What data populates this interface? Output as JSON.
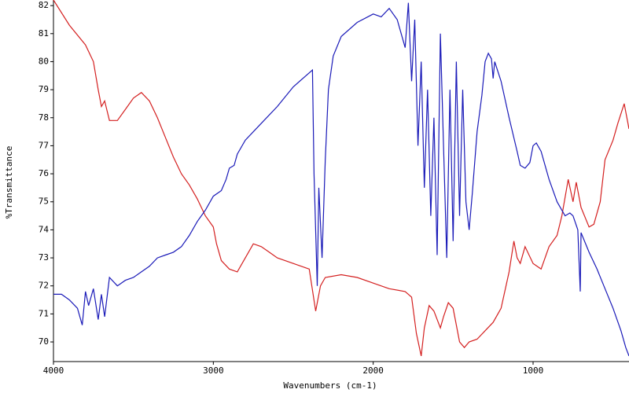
{
  "chart_data": {
    "type": "line",
    "xlabel": "Wavenumbers (cm-1)",
    "ylabel": "%Transmittance",
    "xlim": [
      4000,
      400
    ],
    "ylim": [
      69.3,
      82.2
    ],
    "xticks": [
      4000,
      3000,
      2000,
      1000
    ],
    "yticks": [
      70,
      71,
      72,
      73,
      74,
      75,
      76,
      77,
      78,
      79,
      80,
      81,
      82
    ],
    "series": [
      {
        "color": "#d42020",
        "x": [
          4000,
          3900,
          3800,
          3750,
          3720,
          3700,
          3680,
          3650,
          3600,
          3550,
          3500,
          3450,
          3400,
          3350,
          3300,
          3250,
          3200,
          3150,
          3100,
          3050,
          3000,
          2980,
          2950,
          2900,
          2850,
          2800,
          2750,
          2700,
          2650,
          2600,
          2500,
          2400,
          2360,
          2330,
          2300,
          2200,
          2100,
          2000,
          1900,
          1800,
          1760,
          1730,
          1700,
          1680,
          1650,
          1620,
          1580,
          1560,
          1530,
          1500,
          1460,
          1430,
          1400,
          1350,
          1300,
          1250,
          1200,
          1150,
          1120,
          1100,
          1080,
          1050,
          1000,
          950,
          900,
          850,
          820,
          780,
          750,
          730,
          700,
          650,
          620,
          580,
          550,
          500,
          470,
          430,
          400
        ],
        "values": [
          82.2,
          81.3,
          80.6,
          80.0,
          79.0,
          78.4,
          78.6,
          77.9,
          77.9,
          78.3,
          78.7,
          78.9,
          78.6,
          78.0,
          77.3,
          76.6,
          76.0,
          75.6,
          75.1,
          74.5,
          74.1,
          73.5,
          72.9,
          72.6,
          72.5,
          73.0,
          73.5,
          73.4,
          73.2,
          73.0,
          72.8,
          72.6,
          71.1,
          72.0,
          72.3,
          72.4,
          72.3,
          72.1,
          71.9,
          71.8,
          71.6,
          70.3,
          69.5,
          70.5,
          71.3,
          71.1,
          70.5,
          70.9,
          71.4,
          71.2,
          70.0,
          69.8,
          70.0,
          70.1,
          70.4,
          70.7,
          71.2,
          72.5,
          73.6,
          73.0,
          72.8,
          73.4,
          72.8,
          72.6,
          73.4,
          73.8,
          74.5,
          75.8,
          75.0,
          75.7,
          74.8,
          74.1,
          74.2,
          75.0,
          76.5,
          77.2,
          77.8,
          78.5,
          77.6
        ]
      },
      {
        "color": "#1a1ab8",
        "x": [
          4000,
          3950,
          3900,
          3850,
          3820,
          3800,
          3780,
          3750,
          3720,
          3700,
          3680,
          3650,
          3600,
          3550,
          3500,
          3450,
          3400,
          3350,
          3300,
          3250,
          3200,
          3150,
          3100,
          3050,
          3000,
          2950,
          2920,
          2900,
          2870,
          2850,
          2800,
          2700,
          2600,
          2500,
          2400,
          2380,
          2370,
          2350,
          2340,
          2320,
          2300,
          2280,
          2250,
          2200,
          2100,
          2000,
          1950,
          1900,
          1850,
          1800,
          1780,
          1760,
          1740,
          1720,
          1700,
          1680,
          1660,
          1640,
          1620,
          1600,
          1580,
          1560,
          1540,
          1520,
          1500,
          1480,
          1460,
          1440,
          1420,
          1400,
          1380,
          1350,
          1320,
          1300,
          1280,
          1260,
          1250,
          1240,
          1200,
          1150,
          1100,
          1080,
          1050,
          1020,
          1000,
          980,
          950,
          900,
          850,
          800,
          770,
          750,
          720,
          705,
          700,
          650,
          600,
          550,
          500,
          450,
          420,
          400
        ],
        "values": [
          71.7,
          71.7,
          71.5,
          71.2,
          70.6,
          71.8,
          71.3,
          71.9,
          70.8,
          71.7,
          70.9,
          72.3,
          72.0,
          72.2,
          72.3,
          72.5,
          72.7,
          73.0,
          73.1,
          73.2,
          73.4,
          73.8,
          74.3,
          74.7,
          75.2,
          75.4,
          75.8,
          76.2,
          76.3,
          76.7,
          77.2,
          77.8,
          78.4,
          79.1,
          79.6,
          79.7,
          76.0,
          72.0,
          75.5,
          73.0,
          76.5,
          79.0,
          80.2,
          80.9,
          81.4,
          81.7,
          81.6,
          81.9,
          81.5,
          80.5,
          82.1,
          79.3,
          81.5,
          77.0,
          80.0,
          75.5,
          79.0,
          74.5,
          78.0,
          73.1,
          81.0,
          77.0,
          73.0,
          79.0,
          73.6,
          80.0,
          74.5,
          79.0,
          75.0,
          74.0,
          75.3,
          77.5,
          78.8,
          80.0,
          80.3,
          80.1,
          79.4,
          80.0,
          79.3,
          78.0,
          76.8,
          76.3,
          76.2,
          76.4,
          77.0,
          77.1,
          76.8,
          75.8,
          75.0,
          74.5,
          74.6,
          74.5,
          74.0,
          71.8,
          73.9,
          73.2,
          72.6,
          71.9,
          71.2,
          70.4,
          69.8,
          69.5
        ]
      }
    ]
  }
}
